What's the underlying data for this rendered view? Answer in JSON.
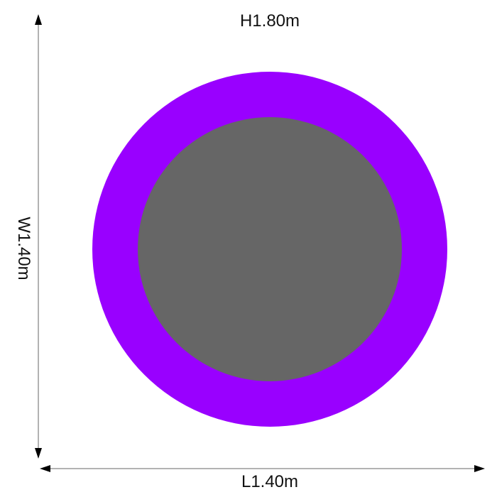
{
  "dimensions": {
    "height_label": "H1.80m",
    "width_label": "W1.40m",
    "length_label": "L1.40m"
  },
  "colors": {
    "frame_pad": "#9900ff",
    "mat": "#666666",
    "arrows": "#999999"
  }
}
